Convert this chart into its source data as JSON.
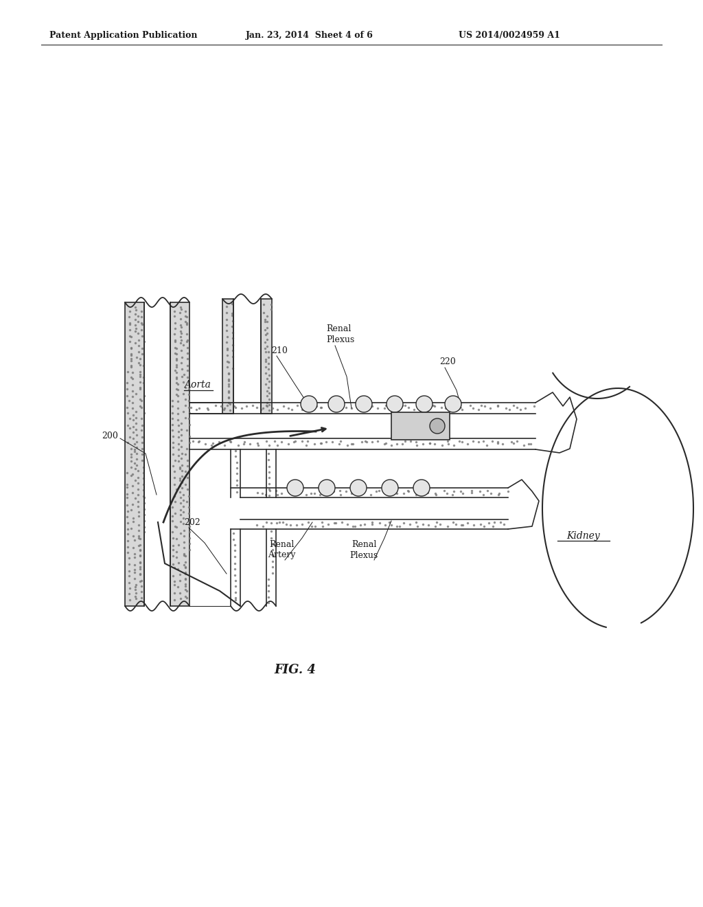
{
  "bg_color": "#ffffff",
  "header_left": "Patent Application Publication",
  "header_mid": "Jan. 23, 2014  Sheet 4 of 6",
  "header_right": "US 2014/0024959 A1",
  "fig_label": "FIG. 4",
  "line_color": "#2a2a2a",
  "text_color": "#1a1a1a",
  "stipple_color": "#777777",
  "wall_fill": "#d8d8d8",
  "labels": {
    "aorta": "Aorta",
    "renal_plexus_top": "Renal\nPlexus",
    "num_210": "210",
    "num_220": "220",
    "num_200": "200",
    "num_202": "202",
    "renal_artery": "Renal\nArtery",
    "renal_plexus_bot": "Renal\nPlexus",
    "kidney": "Kidney"
  }
}
